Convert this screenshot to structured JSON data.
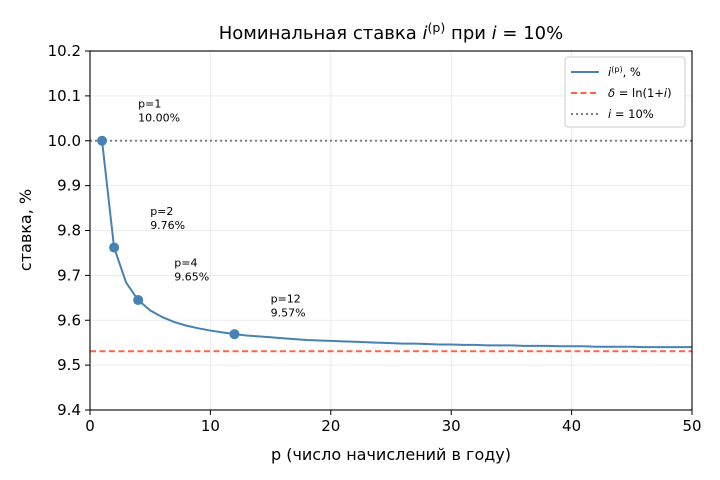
{
  "chart_data": {
    "type": "line",
    "title": "Номинальная ставка i^(p) при i = 10%",
    "title_parts": {
      "prefix": "Номинальная ставка ",
      "sym": "i",
      "sup": "(p)",
      "mid": " при ",
      "sym2": "i",
      "suffix": " = 10%"
    },
    "xlabel": "p (число начислений в году)",
    "ylabel": "ставка, %",
    "xlim": [
      0,
      50
    ],
    "ylim": [
      9.4,
      10.2
    ],
    "xticks": [
      0,
      10,
      20,
      30,
      40,
      50
    ],
    "yticks": [
      9.4,
      9.5,
      9.6,
      9.7,
      9.8,
      9.9,
      10.0,
      10.1,
      10.2
    ],
    "grid": true,
    "legend_position": "top-right",
    "series": [
      {
        "name": "i^(p), %",
        "legend_parts": {
          "sym": "i",
          "sup": "(p)",
          "suffix": ", %"
        },
        "color": "#4682b4",
        "style": "solid",
        "x": [
          1,
          2,
          3,
          4,
          5,
          6,
          7,
          8,
          9,
          10,
          11,
          12,
          13,
          14,
          15,
          16,
          17,
          18,
          19,
          20,
          21,
          22,
          23,
          24,
          25,
          26,
          27,
          28,
          29,
          30,
          31,
          32,
          33,
          34,
          35,
          36,
          37,
          38,
          39,
          40,
          41,
          42,
          43,
          44,
          45,
          46,
          47,
          48,
          49,
          50
        ],
        "y": [
          10.0,
          9.762,
          9.684,
          9.645,
          9.622,
          9.607,
          9.596,
          9.588,
          9.582,
          9.577,
          9.573,
          9.569,
          9.566,
          9.564,
          9.562,
          9.56,
          9.558,
          9.556,
          9.555,
          9.554,
          9.553,
          9.552,
          9.551,
          9.55,
          9.549,
          9.548,
          9.548,
          9.547,
          9.546,
          9.546,
          9.545,
          9.545,
          9.544,
          9.544,
          9.544,
          9.543,
          9.543,
          9.543,
          9.542,
          9.542,
          9.542,
          9.541,
          9.541,
          9.541,
          9.541,
          9.54,
          9.54,
          9.54,
          9.54,
          9.54
        ]
      },
      {
        "name": "δ = ln(1+i)",
        "legend_parts": {
          "sym": "δ",
          "suffix": " = ln(1+",
          "sym2": "i",
          "suffix2": ")"
        },
        "color": "#ff6347",
        "style": "dashed",
        "y_const": 9.531
      },
      {
        "name": "i = 10%",
        "legend_parts": {
          "sym": "i",
          "suffix": " = 10%"
        },
        "color": "#808080",
        "style": "dotted",
        "y_const": 10.0
      }
    ],
    "markers": [
      {
        "x": 1,
        "y": 10.0
      },
      {
        "x": 2,
        "y": 9.762
      },
      {
        "x": 4,
        "y": 9.645
      },
      {
        "x": 12,
        "y": 9.569
      }
    ],
    "annotations": [
      {
        "line1": "p=1",
        "line2": "10.00%",
        "x": 4,
        "y": 10.07
      },
      {
        "line1": "p=2",
        "line2": "9.76%",
        "x": 5,
        "y": 9.83
      },
      {
        "line1": "p=4",
        "line2": "9.65%",
        "x": 7,
        "y": 9.715
      },
      {
        "line1": "p=12",
        "line2": "9.57%",
        "x": 15,
        "y": 9.635
      }
    ]
  }
}
